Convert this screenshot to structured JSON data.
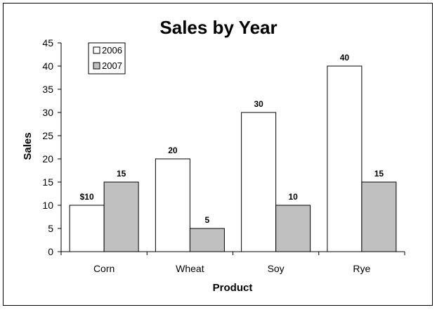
{
  "chart_data": {
    "type": "bar",
    "title": "Sales by Year",
    "xlabel": "Product",
    "ylabel": "Sales",
    "categories": [
      "Corn",
      "Wheat",
      "Soy",
      "Rye"
    ],
    "series": [
      {
        "name": "2006",
        "values": [
          10,
          20,
          30,
          40
        ],
        "labels": [
          "$10",
          "20",
          "30",
          "40"
        ],
        "color": "#ffffff"
      },
      {
        "name": "2007",
        "values": [
          15,
          5,
          10,
          15
        ],
        "labels": [
          "15",
          "5",
          "10",
          "15"
        ],
        "color": "#c0c0c0"
      }
    ],
    "ylim": [
      0,
      45
    ],
    "yticks": [
      0,
      5,
      10,
      15,
      20,
      25,
      30,
      35,
      40,
      45
    ],
    "grid": false,
    "legend_position": "top-left"
  }
}
